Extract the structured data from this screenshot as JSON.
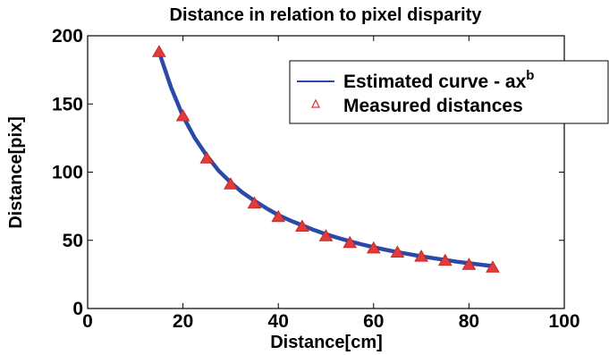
{
  "chart_data": {
    "type": "line",
    "title": "Distance in relation to pixel disparity",
    "xlabel": "Distance[cm]",
    "ylabel": "Distance[pix]",
    "xlim": [
      0,
      100
    ],
    "ylim": [
      0,
      200
    ],
    "x_ticks": [
      "0",
      "20",
      "40",
      "60",
      "80",
      "100"
    ],
    "y_ticks": [
      "0",
      "50",
      "100",
      "150",
      "200"
    ],
    "grid": false,
    "legend_position": "top-right",
    "legend": {
      "estimated_label": "Estimated curve - ax",
      "estimated_label_superscript": "b",
      "measured_label": "Measured distances"
    },
    "series": [
      {
        "name": "Estimated curve - ax^b",
        "kind": "line",
        "color": "#2b4aa8",
        "x": [
          15,
          17.5,
          20,
          22.5,
          25,
          27.5,
          30,
          32.5,
          35,
          37.5,
          40,
          42.5,
          45,
          47.5,
          50,
          52.5,
          55,
          57.5,
          60,
          62.5,
          65,
          67.5,
          70,
          72.5,
          75,
          77.5,
          80,
          82.5,
          85
        ],
        "y": [
          188,
          162,
          141,
          125,
          112,
          101,
          92.5,
          85,
          79,
          73.5,
          68.5,
          64.5,
          61,
          57.5,
          54.5,
          51.8,
          49.3,
          47,
          45,
          43.1,
          41.4,
          39.8,
          38.3,
          36.9,
          35.6,
          34.3,
          33.2,
          32.1,
          31.1
        ]
      },
      {
        "name": "Measured distances",
        "kind": "scatter",
        "marker": "triangle",
        "color": "#e23b3b",
        "x": [
          15,
          20,
          25,
          30,
          35,
          40,
          45,
          50,
          55,
          60,
          65,
          70,
          75,
          80,
          85
        ],
        "y": [
          188,
          141,
          110,
          91,
          77,
          67,
          60,
          53,
          48,
          44,
          41,
          38,
          35,
          32,
          30
        ]
      }
    ]
  }
}
